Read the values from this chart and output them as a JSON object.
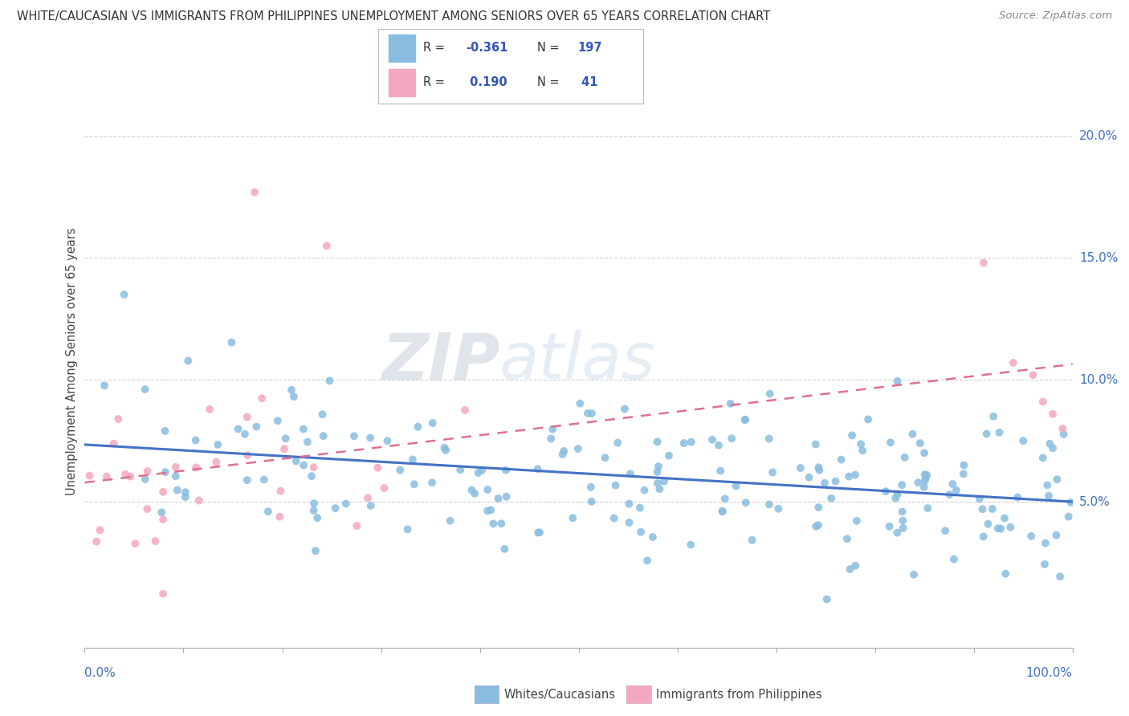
{
  "title": "WHITE/CAUCASIAN VS IMMIGRANTS FROM PHILIPPINES UNEMPLOYMENT AMONG SENIORS OVER 65 YEARS CORRELATION CHART",
  "source": "Source: ZipAtlas.com",
  "ylabel": "Unemployment Among Seniors over 65 years",
  "white_color": "#89bde0",
  "white_edge_color": "#5b9bd5",
  "phil_color": "#f4a8c0",
  "phil_edge_color": "#e06090",
  "white_line_color": "#4472c4",
  "phil_line_color": "#e07090",
  "watermark_zip": "ZIP",
  "watermark_atlas": "atlas",
  "white_R": -0.361,
  "white_N": 197,
  "phil_R": 0.19,
  "phil_N": 41,
  "xlim": [
    0.0,
    1.0
  ],
  "ylim": [
    -0.01,
    0.225
  ],
  "right_yticks": [
    0.05,
    0.1,
    0.15,
    0.2
  ],
  "right_ylabels": [
    "5.0%",
    "10.0%",
    "15.0%",
    "20.0%"
  ],
  "background_color": "#ffffff",
  "grid_color": "#d0d0d0",
  "legend_box_color": "#f0f4f8",
  "legend_border_color": "#c0c8d0",
  "r_val_color": "#3355bb",
  "n_val_color": "#3355bb",
  "label_color": "#444444",
  "axis_label_color": "#4472c4",
  "title_color": "#333333",
  "source_color": "#888888"
}
